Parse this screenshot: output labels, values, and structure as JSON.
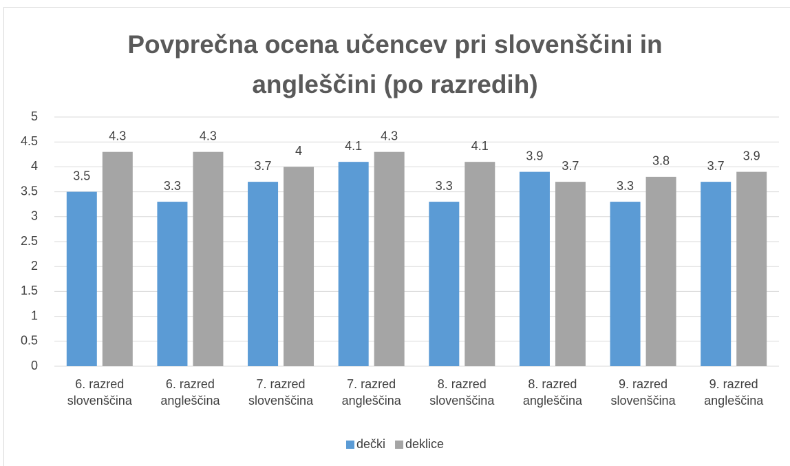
{
  "chart_data": {
    "type": "bar",
    "title": "Povprečna ocena učencev pri slovenščini in angleščini (po razredih)",
    "categories": [
      "6. razred slovenščina",
      "6. razred angleščina",
      "7. razred slovenščina",
      "7. razred angleščina",
      "8. razred slovenščina",
      "8. razred angleščina",
      "9. razred slovenščina",
      "9. razred angleščina"
    ],
    "series": [
      {
        "name": "dečki",
        "color": "#5b9bd5",
        "values": [
          3.5,
          3.3,
          3.7,
          4.1,
          3.3,
          3.9,
          3.3,
          3.7
        ]
      },
      {
        "name": "deklice",
        "color": "#a5a5a5",
        "values": [
          4.3,
          4.3,
          4,
          4.3,
          4.1,
          3.7,
          3.8,
          3.9
        ]
      }
    ],
    "ylim": [
      0,
      5
    ],
    "yticks": [
      0,
      0.5,
      1,
      1.5,
      2,
      2.5,
      3,
      3.5,
      4,
      4.5,
      5
    ],
    "grid": true,
    "legend": "bottom"
  }
}
